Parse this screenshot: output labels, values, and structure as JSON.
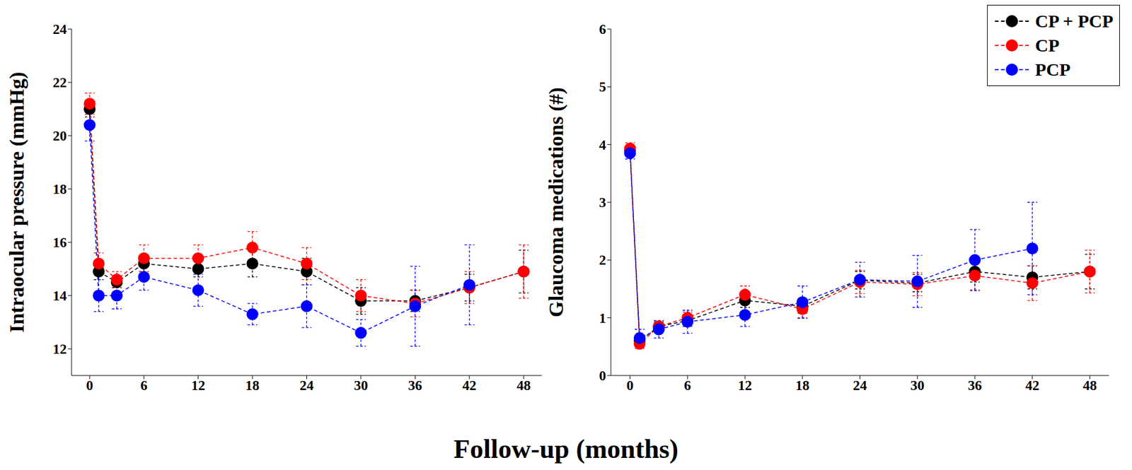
{
  "chart_data": [
    {
      "type": "line",
      "y_label": "Intraocular pressure (mmHg)",
      "x_label": "Follow-up (months)",
      "x": [
        0,
        1,
        3,
        6,
        12,
        18,
        24,
        30,
        36,
        42,
        48
      ],
      "xlim": [
        -2,
        50
      ],
      "xticks": [
        0,
        6,
        12,
        18,
        24,
        30,
        36,
        42,
        48
      ],
      "ylim": [
        11,
        24
      ],
      "yticks": [
        12,
        14,
        16,
        18,
        20,
        22,
        24
      ],
      "series": [
        {
          "name": "CP + PCP",
          "color": "#000000",
          "marker": "o",
          "line_style": "dashed",
          "values": [
            21.0,
            14.9,
            14.5,
            15.2,
            15.0,
            15.2,
            14.9,
            13.8,
            13.8,
            14.3,
            14.9
          ],
          "errors": [
            0.3,
            0.3,
            0.2,
            0.3,
            0.3,
            0.5,
            0.5,
            0.5,
            0.4,
            0.5,
            0.8
          ]
        },
        {
          "name": "CP",
          "color": "#ff0000",
          "marker": "o",
          "line_style": "dashed",
          "values": [
            21.2,
            15.2,
            14.6,
            15.4,
            15.4,
            15.8,
            15.2,
            14.0,
            13.7,
            14.3,
            14.9
          ],
          "errors": [
            0.4,
            0.4,
            0.3,
            0.5,
            0.5,
            0.6,
            0.6,
            0.6,
            0.5,
            0.6,
            1.0
          ]
        },
        {
          "name": "PCP",
          "color": "#0000ff",
          "marker": "o",
          "line_style": "dashed",
          "values": [
            20.4,
            14.0,
            14.0,
            14.7,
            14.2,
            13.3,
            13.6,
            12.6,
            13.6,
            14.4,
            null
          ],
          "errors": [
            0.6,
            0.6,
            0.5,
            0.5,
            0.6,
            0.4,
            0.8,
            0.5,
            1.5,
            1.5,
            null
          ]
        }
      ]
    },
    {
      "type": "line",
      "y_label": "Glaucoma medications (#)",
      "legend": "upper right",
      "x": [
        0,
        1,
        3,
        6,
        12,
        18,
        24,
        30,
        36,
        42,
        48
      ],
      "xlim": [
        -2,
        50
      ],
      "xticks": [
        0,
        6,
        12,
        18,
        24,
        30,
        36,
        42,
        48
      ],
      "ylim": [
        0,
        6
      ],
      "yticks": [
        0,
        1,
        2,
        3,
        4,
        5,
        6
      ],
      "series": [
        {
          "name": "CP + PCP",
          "color": "#000000",
          "marker": "o",
          "line_style": "dashed",
          "values": [
            3.9,
            0.6,
            0.85,
            0.95,
            1.3,
            1.2,
            1.65,
            1.6,
            1.8,
            1.7,
            1.8
          ],
          "errors": [
            0.08,
            0.08,
            0.08,
            0.1,
            0.12,
            0.12,
            0.15,
            0.15,
            0.18,
            0.2,
            0.3
          ]
        },
        {
          "name": "CP",
          "color": "#ff0000",
          "marker": "o",
          "line_style": "dashed",
          "values": [
            3.93,
            0.55,
            0.85,
            1.0,
            1.4,
            1.15,
            1.62,
            1.58,
            1.73,
            1.6,
            1.8
          ],
          "errors": [
            0.1,
            0.08,
            0.1,
            0.1,
            0.15,
            0.15,
            0.2,
            0.2,
            0.25,
            0.3,
            0.37
          ]
        },
        {
          "name": "PCP",
          "color": "#0000ff",
          "marker": "o",
          "line_style": "dashed",
          "values": [
            3.85,
            0.65,
            0.8,
            0.93,
            1.05,
            1.27,
            1.66,
            1.63,
            2.0,
            2.2,
            null
          ],
          "errors": [
            0.1,
            0.15,
            0.15,
            0.2,
            0.2,
            0.28,
            0.3,
            0.45,
            0.53,
            0.8,
            null
          ]
        }
      ]
    }
  ]
}
